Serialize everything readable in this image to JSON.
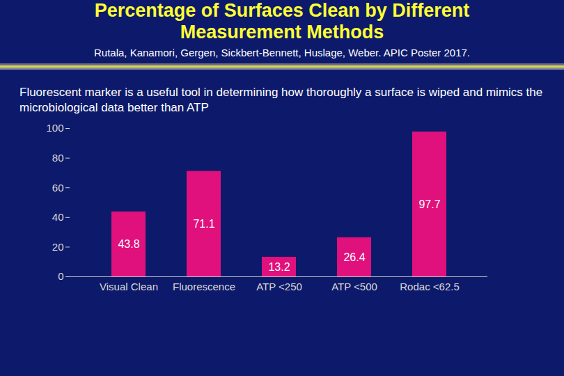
{
  "chart_data": {
    "type": "bar",
    "title": "Percentage of Surfaces Clean by Different Measurement Methods",
    "subtitle": "Rutala, Kanamori, Gergen, Sickbert-Bennett, Huslage, Weber. APIC Poster 2017.",
    "annotations": [
      "Fluorescent marker is a useful tool in determining how thoroughly a surface is wiped and mimics the microbiological data better than ATP"
    ],
    "categories": [
      "Visual Clean",
      "Fluorescence",
      "ATP <250",
      "ATP <500",
      "Rodac <62.5"
    ],
    "values": [
      43.8,
      71.1,
      13.2,
      26.4,
      97.7
    ],
    "color": "#e0107c",
    "ylim": [
      0,
      100
    ],
    "yticks": [
      0,
      20,
      40,
      60,
      80,
      100
    ],
    "grid": false,
    "data_labels": true
  }
}
